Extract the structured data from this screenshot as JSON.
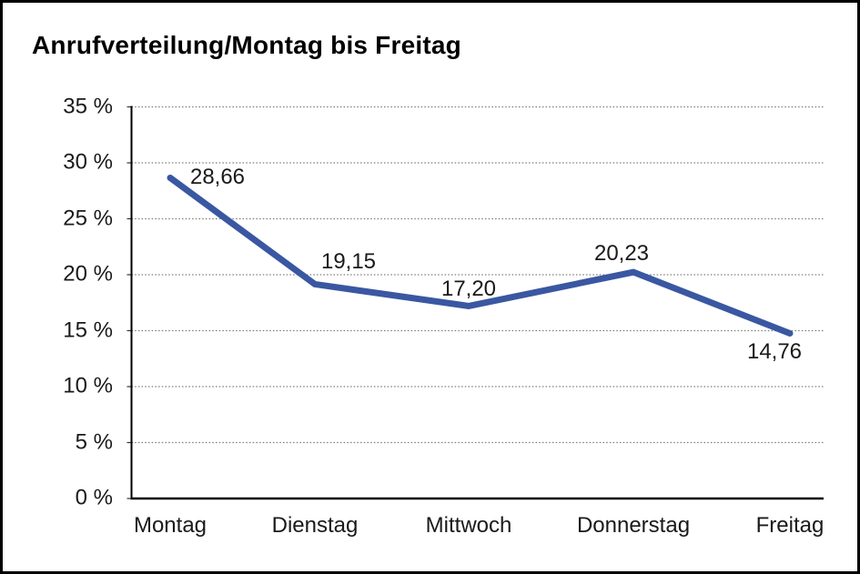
{
  "title": "Anrufverteilung/Montag bis Freitag",
  "chart_data": {
    "type": "line",
    "title": "Anrufverteilung/Montag bis Freitag",
    "categories": [
      "Montag",
      "Dienstag",
      "Mittwoch",
      "Donnerstag",
      "Freitag"
    ],
    "values": [
      28.66,
      19.15,
      17.2,
      20.23,
      14.76
    ],
    "value_labels": [
      "28,66",
      "19,15",
      "17,20",
      "20,23",
      "14,76"
    ],
    "unit": "%",
    "ylim": [
      0,
      35
    ],
    "y_tick_step": 5,
    "y_tick_labels": [
      "35 %",
      "30 %",
      "25 %",
      "20 %",
      "15 %",
      "10 %",
      "5 %",
      "0 %"
    ],
    "grid": "horizontal-dotted",
    "legend": "none",
    "line_color": "#3A57A2",
    "grid_color": "#7d7d7d",
    "axis_color": "#000000",
    "text_color": "#1a1a1a"
  }
}
